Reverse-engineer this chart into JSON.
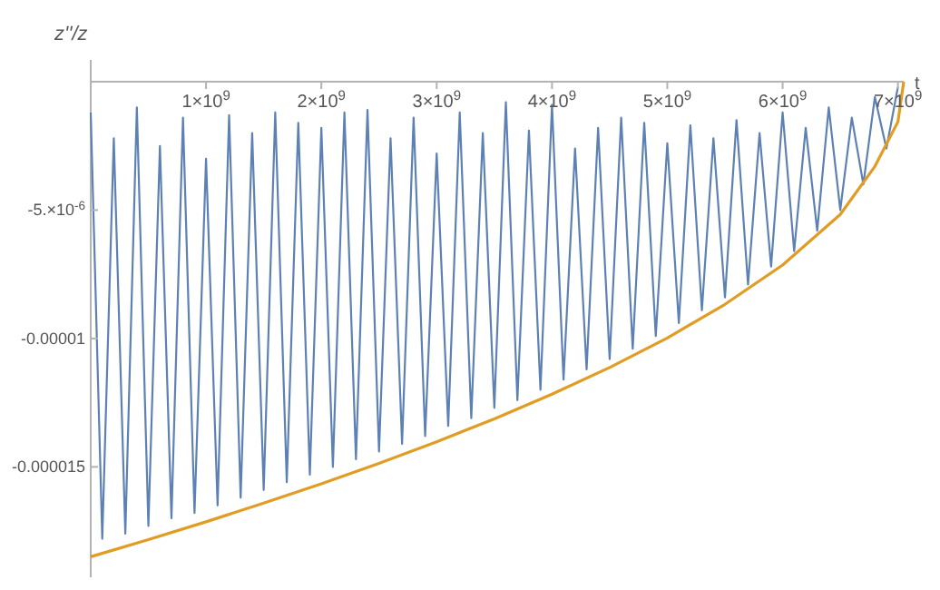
{
  "chart_data": {
    "type": "line",
    "xlabel": "t",
    "ylabel": "z''/z",
    "xlim": [
      0,
      7050000000
    ],
    "ylim": [
      -1.93e-05,
      0
    ],
    "xticks": [
      {
        "value": 1000000000,
        "label": "1×10$^{9}$"
      },
      {
        "value": 2000000000,
        "label": "2×10$^{9}$"
      },
      {
        "value": 3000000000,
        "label": "3×10$^{9}$"
      },
      {
        "value": 4000000000,
        "label": "4×10$^{9}$"
      },
      {
        "value": 5000000000,
        "label": "5×10$^{9}$"
      },
      {
        "value": 6000000000,
        "label": "6×10$^{9}$"
      },
      {
        "value": 7000000000,
        "label": "7×10$^{9}$"
      }
    ],
    "yticks": [
      {
        "value": -5e-06,
        "label": "-5.×10$^{-6}$"
      },
      {
        "value": -1e-05,
        "label": "-0.00001"
      },
      {
        "value": -1.5e-05,
        "label": "-0.000015"
      }
    ],
    "grid": false,
    "marker": "none",
    "line_style": "solid",
    "series": [
      {
        "color": "#5e81b5",
        "x": [
          0,
          100000000,
          200000000,
          300000000,
          400000000,
          500000000,
          600000000,
          700000000,
          800000000,
          900000000,
          1000000000,
          1100000000,
          1200000000,
          1300000000,
          1400000000,
          1500000000,
          1600000000,
          1700000000,
          1800000000,
          1900000000,
          2000000000,
          2100000000,
          2200000000,
          2300000000,
          2400000000,
          2500000000,
          2600000000,
          2700000000,
          2800000000,
          2900000000,
          3000000000,
          3100000000,
          3200000000,
          3300000000,
          3400000000,
          3500000000,
          3600000000,
          3700000000,
          3800000000,
          3900000000,
          4000000000,
          4100000000,
          4200000000,
          4300000000,
          4400000000,
          4500000000,
          4600000000,
          4700000000,
          4800000000,
          4900000000,
          5000000000,
          5100000000,
          5200000000,
          5300000000,
          5400000000,
          5500000000,
          5600000000,
          5700000000,
          5800000000,
          5900000000,
          6000000000,
          6100000000,
          6200000000,
          6300000000,
          6400000000,
          6500000000,
          6600000000,
          6700000000,
          6800000000,
          6900000000,
          7000000000
        ],
        "values": [
          -1.2e-06,
          -1.78e-05,
          -2.2e-06,
          -1.76e-05,
          -1e-06,
          -1.73e-05,
          -2.5e-06,
          -1.7e-05,
          -1.4e-06,
          -1.68e-05,
          -3e-06,
          -1.65e-05,
          -1.3e-06,
          -1.62e-05,
          -2e-06,
          -1.59e-05,
          -1.2e-06,
          -1.56e-05,
          -1.6e-06,
          -1.53e-05,
          -1.8e-06,
          -1.5e-05,
          -1.2e-06,
          -1.47e-05,
          -1.1e-06,
          -1.44e-05,
          -2.2e-06,
          -1.41e-05,
          -1.4e-06,
          -1.38e-05,
          -2.8e-06,
          -1.34e-05,
          -1.2e-06,
          -1.31e-05,
          -2e-06,
          -1.27e-05,
          -8e-07,
          -1.24e-05,
          -1.9e-06,
          -1.2e-05,
          -9e-07,
          -1.16e-05,
          -2.6e-06,
          -1.12e-05,
          -1.8e-06,
          -1.08e-05,
          -1.4e-06,
          -1.04e-05,
          -1.6e-06,
          -9.9e-06,
          -2.4e-06,
          -9.4e-06,
          -1.7e-06,
          -8.9e-06,
          -2.2e-06,
          -8.4e-06,
          -1.5e-06,
          -7.9e-06,
          -2e-06,
          -7.2e-06,
          -1.2e-06,
          -6.6e-06,
          -1.8e-06,
          -5.8e-06,
          -1e-06,
          -5e-06,
          -1.4e-06,
          -4e-06,
          -6e-07,
          -2.6e-06,
          -2e-07
        ]
      },
      {
        "color": "#e19c24",
        "x": [
          0,
          500000000,
          1000000000,
          1500000000,
          2000000000,
          2500000000,
          3000000000,
          3500000000,
          4000000000,
          4500000000,
          5000000000,
          5500000000,
          6000000000,
          6500000000,
          6800000000,
          7000000000,
          7050000000
        ],
        "values": [
          -1.85e-05,
          -1.783e-05,
          -1.714e-05,
          -1.641e-05,
          -1.566e-05,
          -1.486e-05,
          -1.402e-05,
          -1.313e-05,
          -1.217e-05,
          -1.113e-05,
          -9.98e-06,
          -8.67e-06,
          -7.14e-06,
          -5.17e-06,
          -3.3e-06,
          -1.56e-06,
          0
        ]
      }
    ]
  }
}
